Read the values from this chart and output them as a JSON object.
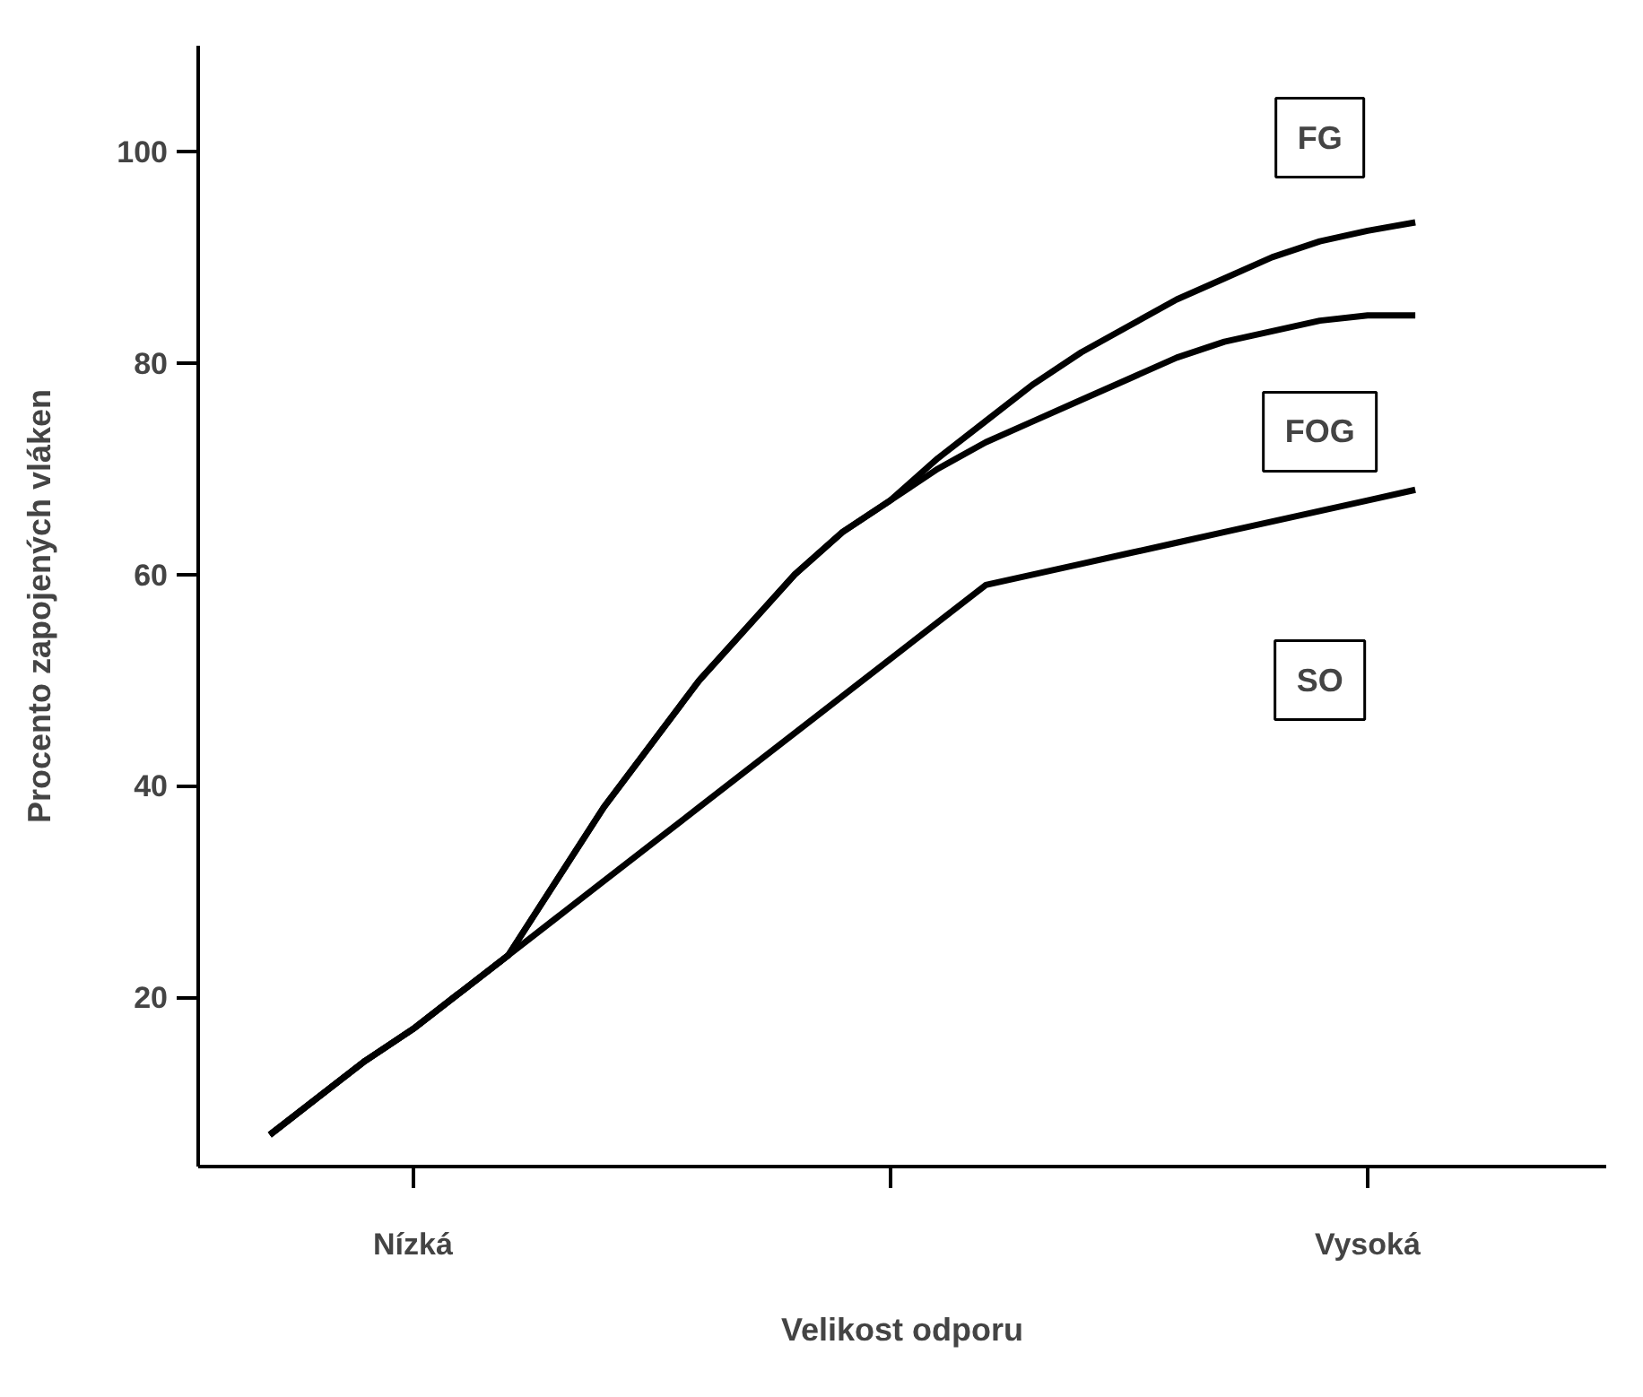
{
  "chart_data": {
    "type": "line",
    "xlabel": "Velikost odporu",
    "ylabel": "Procento zapojených vláken",
    "categories": [
      null,
      null,
      null,
      "Nízká",
      null,
      null,
      null,
      null,
      null,
      null,
      null,
      null,
      null,
      null,
      null,
      null,
      null,
      null,
      null,
      null,
      null,
      null,
      null,
      "Vysoká",
      null
    ],
    "ylim": [
      4,
      110
    ],
    "yticks": [
      20,
      40,
      60,
      80,
      100
    ],
    "grid": false,
    "legend": false,
    "series": [
      {
        "name": "FG",
        "color": "#000000",
        "values": [
          7,
          10.5,
          14,
          17,
          20.5,
          24,
          31,
          38,
          44,
          50,
          55,
          60,
          64,
          67,
          71,
          74.5,
          78,
          81,
          83.5,
          86,
          88,
          90,
          91.5,
          92.5,
          93.3
        ]
      },
      {
        "name": "FOG",
        "color": "#000000",
        "values": [
          7,
          10.5,
          14,
          17,
          20.5,
          24,
          31,
          38,
          44,
          50,
          55,
          60,
          64,
          67,
          70,
          72.5,
          74.5,
          76.5,
          78.5,
          80.5,
          82,
          83,
          84,
          84.5,
          84.5
        ]
      },
      {
        "name": "SO",
        "color": "#000000",
        "values": [
          7,
          10.5,
          14,
          17,
          20.5,
          24,
          27.5,
          31,
          34.5,
          38,
          41.5,
          45,
          48.5,
          52,
          55.5,
          59,
          60,
          61,
          62,
          63,
          64,
          65,
          66,
          67,
          68
        ]
      }
    ]
  }
}
